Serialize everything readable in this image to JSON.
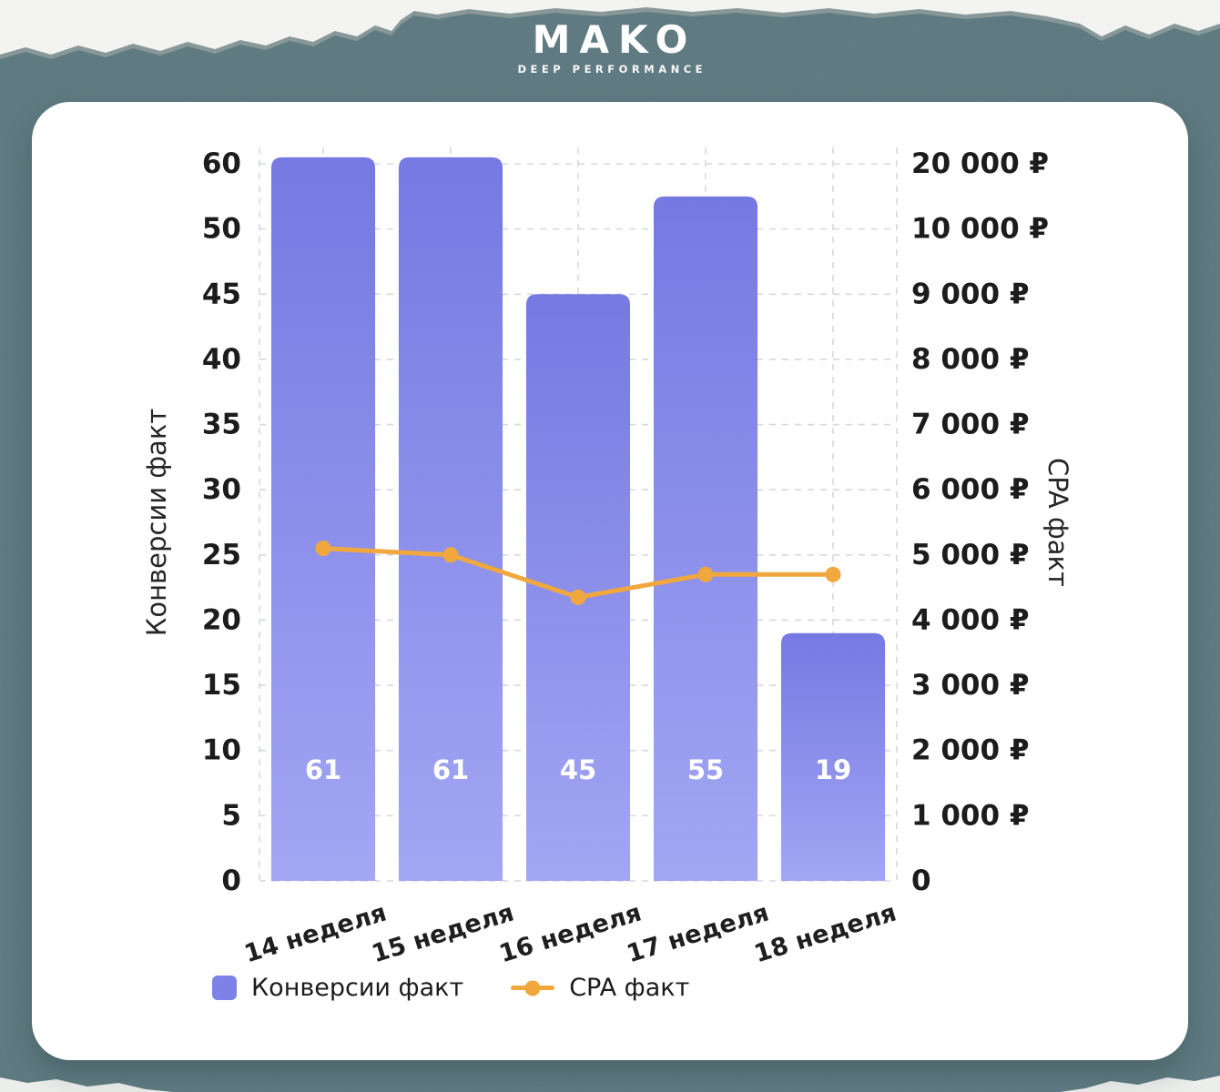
{
  "brand": {
    "name": "MAKO",
    "tagline": "DEEP PERFORMANCE"
  },
  "colors": {
    "background": "#6b8a91",
    "card": "#ffffff",
    "bar": "#7e82e8",
    "bar_gradient_top": "#7579e2",
    "bar_gradient_bottom": "#a3a6f3",
    "line": "#f0a73e",
    "grid": "#d5d8dd",
    "text": "#1c1c1c",
    "bar_value_label": "#ffffff"
  },
  "chart_data": {
    "type": "bar+line combo",
    "categories": [
      "14 неделя",
      "15 неделя",
      "16 неделя",
      "17 неделя",
      "18 неделя"
    ],
    "series": [
      {
        "name": "Конверсии факт",
        "type": "bar",
        "axis": "left",
        "values": [
          61,
          61,
          45,
          55,
          19
        ]
      },
      {
        "name": "CPA факт",
        "type": "line",
        "axis": "right",
        "values": [
          5100,
          5000,
          4350,
          4700,
          4700
        ]
      }
    ],
    "bar_value_labels": [
      "61",
      "61",
      "45",
      "55",
      "19"
    ],
    "left_axis": {
      "title": "Конверсии факт",
      "tick_labels": [
        "0",
        "5",
        "10",
        "15",
        "20",
        "25",
        "30",
        "35",
        "40",
        "45",
        "50",
        "60"
      ],
      "tick_values": [
        0,
        5,
        10,
        15,
        20,
        25,
        30,
        35,
        40,
        45,
        50,
        60
      ]
    },
    "right_axis": {
      "title": "CPA факт",
      "tick_labels": [
        "0",
        "1 000 ₽",
        "2 000 ₽",
        "3 000 ₽",
        "4 000 ₽",
        "5 000 ₽",
        "6 000 ₽",
        "7 000 ₽",
        "8 000 ₽",
        "9 000 ₽",
        "10 000 ₽",
        "20 000 ₽"
      ],
      "tick_values": [
        0,
        1000,
        2000,
        3000,
        4000,
        5000,
        6000,
        7000,
        8000,
        9000,
        10000,
        20000
      ]
    },
    "grid": "dashed",
    "legend_position": "bottom-left"
  }
}
